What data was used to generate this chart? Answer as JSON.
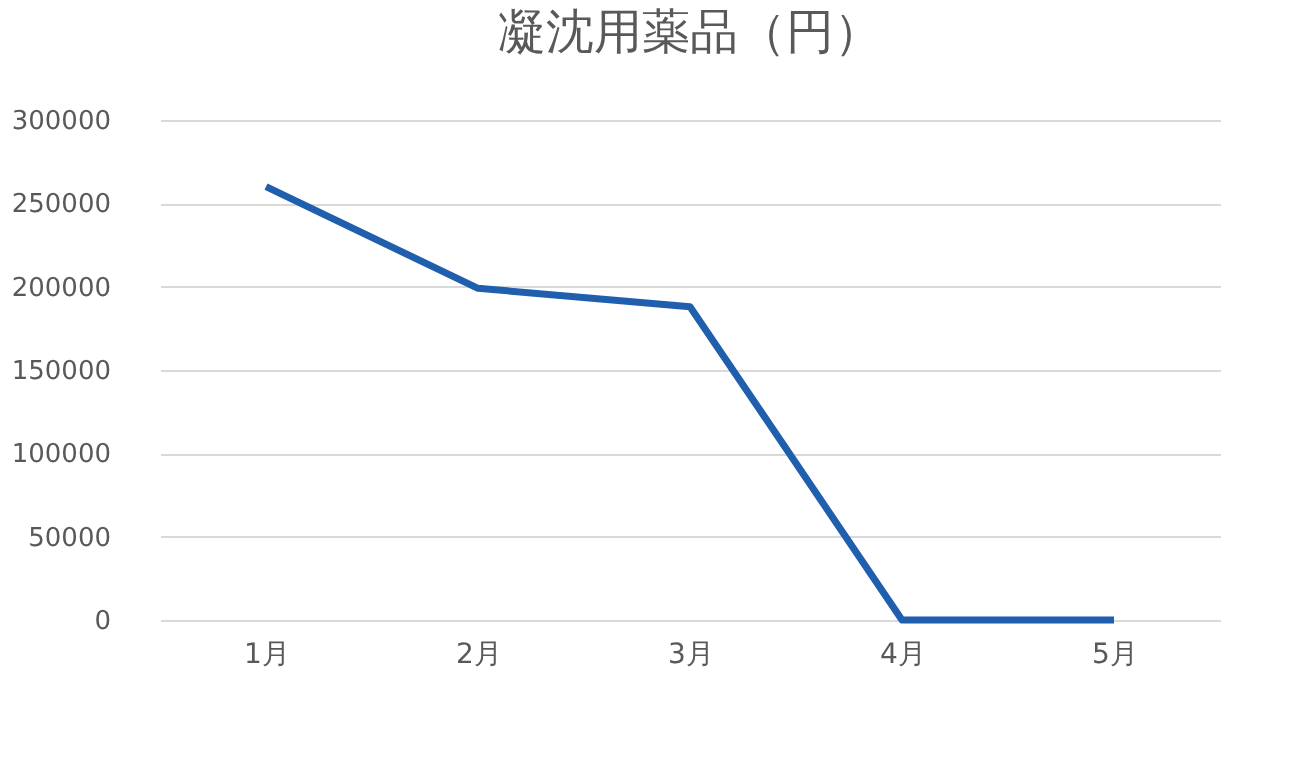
{
  "chart_data": {
    "type": "line",
    "title": "凝沈用薬品（円）",
    "categories": [
      "1月",
      "2月",
      "3月",
      "4月",
      "5月"
    ],
    "series": [
      {
        "color": "#1f5fad",
        "values": [
          260000,
          199000,
          188000,
          0,
          0
        ]
      }
    ],
    "ylim": [
      0,
      300000
    ],
    "yticks": [
      0,
      50000,
      100000,
      150000,
      200000,
      250000,
      300000
    ],
    "grid": "y",
    "marker": "none",
    "line_style": "solid"
  }
}
